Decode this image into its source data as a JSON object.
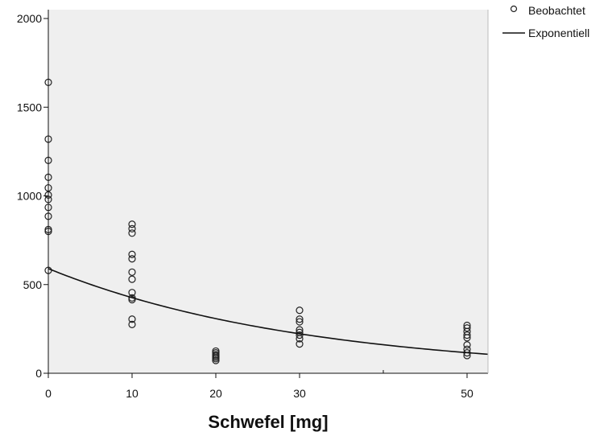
{
  "chart_data": {
    "type": "scatter",
    "xlabel": "Schwefel [mg]",
    "ylabel": "",
    "xlim": [
      0,
      52.5
    ],
    "ylim": [
      0,
      2000
    ],
    "x_ticks": [
      0,
      10,
      20,
      30,
      50
    ],
    "x_minor_ticks": [
      40
    ],
    "y_ticks": [
      0,
      500,
      1000,
      1500,
      2000
    ],
    "grid": false,
    "legend_position": "top-right",
    "colors": {
      "plot_bg": "#efefef",
      "marker": "#222222",
      "line": "#111111",
      "axis": "#111111"
    },
    "series": [
      {
        "name": "Beobachtet",
        "kind": "scatter",
        "marker": "open-circle",
        "points": [
          [
            0,
            1640
          ],
          [
            0,
            1320
          ],
          [
            0,
            1200
          ],
          [
            0,
            1105
          ],
          [
            0,
            1045
          ],
          [
            0,
            1005
          ],
          [
            0,
            980
          ],
          [
            0,
            935
          ],
          [
            0,
            885
          ],
          [
            0,
            810
          ],
          [
            0,
            800
          ],
          [
            0,
            580
          ],
          [
            10,
            840
          ],
          [
            10,
            815
          ],
          [
            10,
            790
          ],
          [
            10,
            670
          ],
          [
            10,
            645
          ],
          [
            10,
            570
          ],
          [
            10,
            530
          ],
          [
            10,
            455
          ],
          [
            10,
            425
          ],
          [
            10,
            415
          ],
          [
            10,
            305
          ],
          [
            10,
            275
          ],
          [
            20,
            125
          ],
          [
            20,
            115
          ],
          [
            20,
            105
          ],
          [
            20,
            98
          ],
          [
            20,
            90
          ],
          [
            20,
            82
          ],
          [
            20,
            72
          ],
          [
            30,
            355
          ],
          [
            30,
            305
          ],
          [
            30,
            290
          ],
          [
            30,
            245
          ],
          [
            30,
            230
          ],
          [
            30,
            215
          ],
          [
            30,
            195
          ],
          [
            30,
            165
          ],
          [
            50,
            270
          ],
          [
            50,
            255
          ],
          [
            50,
            235
          ],
          [
            50,
            215
          ],
          [
            50,
            200
          ],
          [
            50,
            160
          ],
          [
            50,
            135
          ],
          [
            50,
            115
          ],
          [
            50,
            100
          ]
        ]
      },
      {
        "name": "Exponentiell",
        "kind": "line",
        "model": {
          "a": 590,
          "b": -0.0325
        },
        "x_range": [
          0,
          52.5
        ]
      }
    ]
  }
}
